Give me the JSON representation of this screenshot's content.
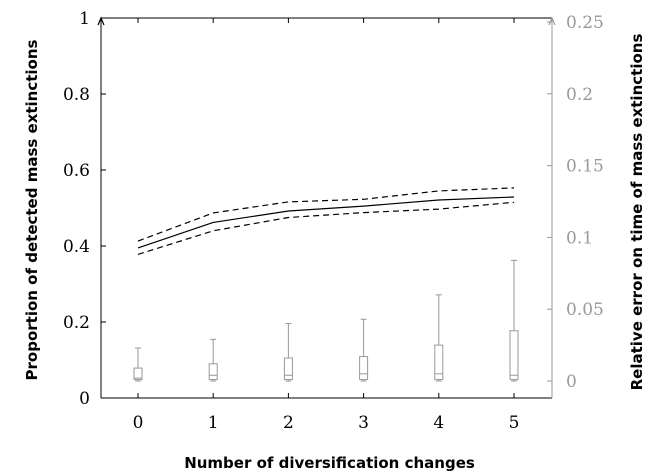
{
  "chart_data": {
    "type": "line",
    "title": "",
    "xlabel": "Number of diversification changes",
    "ylabel": "Proportion of detected mass extinctions",
    "y2label": "Relative error on time of mass extinctions",
    "x": [
      0,
      1,
      2,
      3,
      4,
      5
    ],
    "xlim": [
      -0.5,
      5.5
    ],
    "ylim": [
      0,
      1
    ],
    "y2lim": [
      -0.01,
      0.25
    ],
    "x_ticks": [
      "0",
      "1",
      "2",
      "3",
      "4",
      "5"
    ],
    "y_ticks": [
      "0",
      "0.2",
      "0.4",
      "0.6",
      "0.8",
      "1"
    ],
    "y2_ticks": [
      "0",
      "0.05",
      "0.1",
      "0.15",
      "0.2",
      "0.25"
    ],
    "grid": false,
    "series": [
      {
        "style": "solid",
        "color": "#000000",
        "axis": "left",
        "values": [
          0.395,
          0.462,
          0.492,
          0.505,
          0.521,
          0.529
        ]
      },
      {
        "style": "dashed",
        "color": "#000000",
        "axis": "left",
        "values": [
          0.413,
          0.487,
          0.516,
          0.523,
          0.545,
          0.553
        ]
      },
      {
        "style": "dashed",
        "color": "#000000",
        "axis": "left",
        "values": [
          0.378,
          0.44,
          0.475,
          0.488,
          0.497,
          0.515
        ]
      }
    ],
    "boxplots": {
      "axis": "right",
      "color": "#999999",
      "boxes": [
        {
          "x": 0,
          "min": 0.0,
          "q1": 0.001,
          "median": 0.002,
          "q3": 0.009,
          "max": 0.023
        },
        {
          "x": 1,
          "min": 0.0,
          "q1": 0.001,
          "median": 0.004,
          "q3": 0.012,
          "max": 0.029
        },
        {
          "x": 2,
          "min": 0.0,
          "q1": 0.001,
          "median": 0.004,
          "q3": 0.016,
          "max": 0.04
        },
        {
          "x": 3,
          "min": 0.0,
          "q1": 0.001,
          "median": 0.005,
          "q3": 0.017,
          "max": 0.043
        },
        {
          "x": 4,
          "min": 0.0,
          "q1": 0.001,
          "median": 0.005,
          "q3": 0.025,
          "max": 0.06
        },
        {
          "x": 5,
          "min": 0.0,
          "q1": 0.001,
          "median": 0.004,
          "q3": 0.035,
          "max": 0.084
        }
      ]
    },
    "colors": {
      "left_axis": "#000000",
      "right_axis": "#999999"
    }
  }
}
